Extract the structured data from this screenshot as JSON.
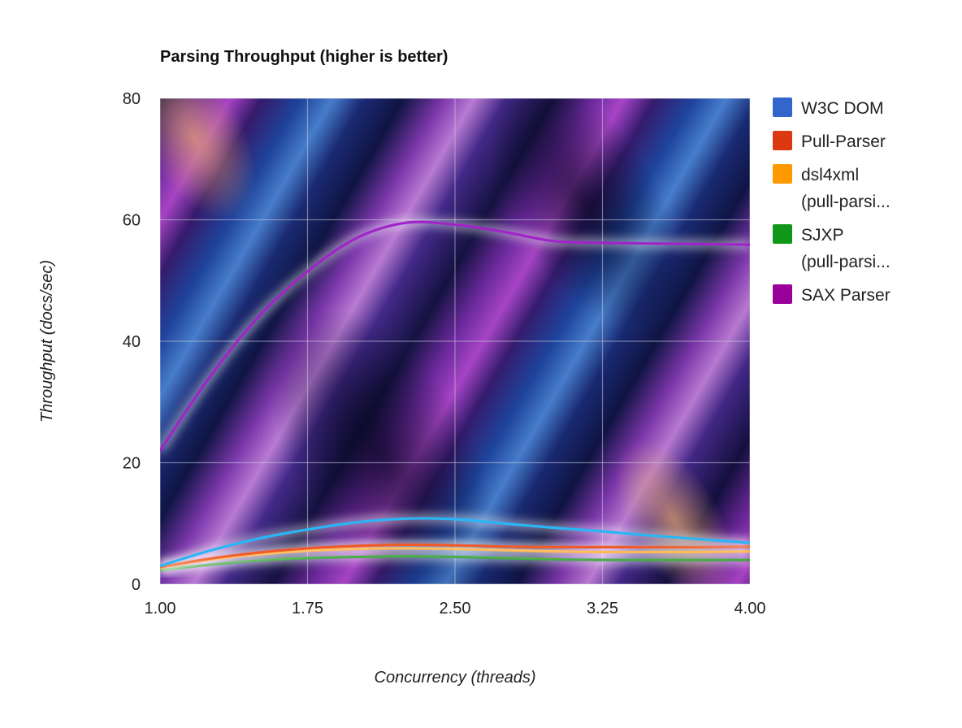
{
  "chart_data": {
    "type": "line",
    "title": "Parsing Throughput (higher is better)",
    "xlabel": "Concurrency (threads)",
    "ylabel": "Throughput (docs/sec)",
    "x": [
      1.0,
      1.25,
      1.5,
      1.75,
      2.0,
      2.25,
      2.5,
      2.75,
      3.0,
      3.25,
      3.5,
      3.75,
      4.0
    ],
    "xticks": [
      "1.00",
      "1.75",
      "2.50",
      "3.25",
      "4.00"
    ],
    "xtick_values": [
      1.0,
      1.75,
      2.5,
      3.25,
      4.0
    ],
    "yticks": [
      "0",
      "20",
      "40",
      "60",
      "80"
    ],
    "ytick_values": [
      0,
      20,
      40,
      60,
      80
    ],
    "xlim": [
      1.0,
      4.0
    ],
    "ylim": [
      0,
      80
    ],
    "grid": true,
    "legend_position": "right",
    "series": [
      {
        "name": "W3C DOM",
        "legend_label": [
          "W3C DOM"
        ],
        "color": "#3366cc",
        "line_color": "#29b6f6",
        "values": [
          3.0,
          5.5,
          7.5,
          9.0,
          10.2,
          10.8,
          10.7,
          10.0,
          9.3,
          8.7,
          8.0,
          7.4,
          6.8
        ]
      },
      {
        "name": "Pull-Parser",
        "legend_label": [
          "Pull-Parser"
        ],
        "color": "#dc3912",
        "line_color": "#ef5a28",
        "values": [
          2.8,
          4.2,
          5.2,
          5.9,
          6.3,
          6.5,
          6.4,
          6.2,
          6.1,
          6.1,
          6.1,
          6.1,
          6.2
        ]
      },
      {
        "name": "dsl4xml (pull-parsi...",
        "legend_label": [
          "dsl4xml",
          "(pull-parsi..."
        ],
        "color": "#ff9900",
        "line_color": "#ffa726",
        "values": [
          2.7,
          4.0,
          4.9,
          5.5,
          5.8,
          5.9,
          5.8,
          5.6,
          5.4,
          5.3,
          5.3,
          5.3,
          5.4
        ]
      },
      {
        "name": "SJXP (pull-parsi...",
        "legend_label": [
          "SJXP",
          "(pull-parsi..."
        ],
        "color": "#109618",
        "line_color": "#2ca02c",
        "values": [
          2.3,
          3.2,
          3.9,
          4.3,
          4.5,
          4.6,
          4.5,
          4.3,
          4.1,
          4.0,
          4.0,
          4.0,
          4.0
        ]
      },
      {
        "name": "SAX Parser",
        "legend_label": [
          "SAX Parser"
        ],
        "color": "#990099",
        "line_color": "#a024c8",
        "values": [
          22,
          34,
          44,
          51.5,
          57,
          59.5,
          59.2,
          58,
          56.5,
          56.2,
          56.1,
          56.0,
          55.9
        ]
      }
    ]
  }
}
